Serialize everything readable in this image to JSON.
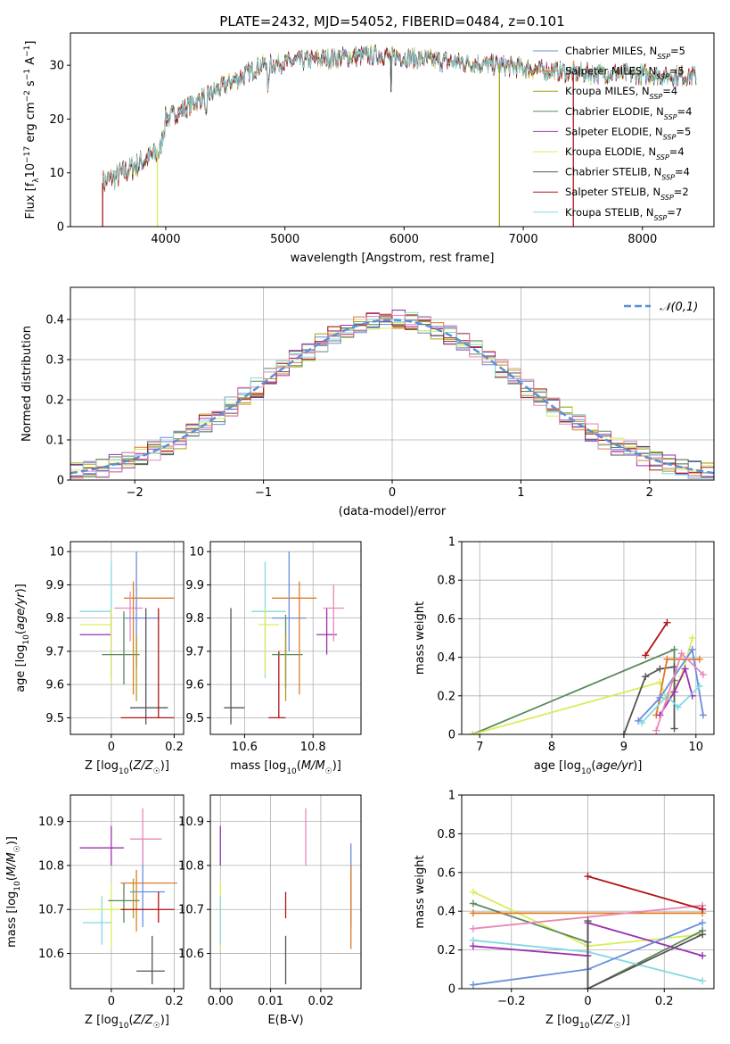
{
  "suptitle": "PLATE=2432, MJD=54052, FIBERID=0484, z=0.101",
  "colors": {
    "Chabrier MILES": "#6a8ddc",
    "Salpeter MILES": "#e07b25",
    "Kroupa MILES": "#a8a01a",
    "Chabrier ELODIE": "#5b8a5b",
    "Salpeter ELODIE": "#9b30b0",
    "Kroupa ELODIE": "#d8ee5a",
    "Chabrier STELIB": "#555555",
    "Salpeter STELIB": "#b01515",
    "Kroupa STELIB": "#84d8e0",
    "Salpeter STELIB alt": "#e888b8",
    "normal": "#5b8fd6"
  },
  "chart_data": [
    {
      "id": "spectrum",
      "type": "line",
      "xlabel": "wavelength [Angstrom, rest frame]",
      "ylabel": "Flux [f_λ10^-17 erg cm^-2 s^-1 A^-1]",
      "xlim": [
        3200,
        8600
      ],
      "ylim": [
        0,
        36
      ],
      "xticks": [
        4000,
        5000,
        6000,
        7000,
        8000
      ],
      "yticks": [
        0,
        10,
        20,
        30
      ],
      "grid": false,
      "legend_position": "top-right",
      "continuum": {
        "x": [
          3460,
          3600,
          3800,
          3950,
          4000,
          4200,
          4400,
          4600,
          4800,
          5000,
          5200,
          5500,
          5800,
          6000,
          6200,
          6500,
          6800,
          7000,
          7200,
          7500,
          7800,
          8000,
          8200,
          8400
        ],
        "y": [
          8,
          9.5,
          12,
          14,
          20,
          22.5,
          25,
          27.5,
          30,
          30.5,
          31,
          31.5,
          32,
          31.5,
          31,
          30.5,
          30,
          29.5,
          29,
          28.5,
          28.5,
          28.3,
          28.1,
          28
        ]
      },
      "series": [
        {
          "name": "Chabrier MILES",
          "nssp": "5"
        },
        {
          "name": "Salpeter MILES",
          "nssp": "5"
        },
        {
          "name": "Kroupa MILES",
          "nssp": "4"
        },
        {
          "name": "Chabrier ELODIE",
          "nssp": "4"
        },
        {
          "name": "Salpeter ELODIE",
          "nssp": "5"
        },
        {
          "name": "Kroupa ELODIE",
          "nssp": "4"
        },
        {
          "name": "Chabrier STELIB",
          "nssp": "4"
        },
        {
          "name": "Salpeter STELIB",
          "nssp": "2"
        },
        {
          "name": "Kroupa STELIB",
          "nssp": "7"
        }
      ],
      "drops": [
        {
          "x": 3930,
          "y": 0,
          "series": "Kroupa ELODIE"
        },
        {
          "x": 3470,
          "y": 0,
          "series": "Salpeter STELIB"
        },
        {
          "x": 6800,
          "y": 0,
          "series": "Kroupa MILES"
        },
        {
          "x": 7420,
          "y": 0,
          "series": "Salpeter STELIB"
        },
        {
          "x": 5890,
          "y": 25,
          "series": "Chabrier STELIB"
        }
      ]
    },
    {
      "id": "residual-histogram",
      "type": "line",
      "xlabel": "(data-model)/error",
      "ylabel": "Normed distribution",
      "xlim": [
        -2.5,
        2.5
      ],
      "ylim": [
        0,
        0.48
      ],
      "xticks": [
        -2,
        -1,
        0,
        1,
        2
      ],
      "yticks": [
        0.0,
        0.1,
        0.2,
        0.3,
        0.4
      ],
      "grid": true,
      "legend_position": "top-right",
      "normal_label": "𝒩(0,1)",
      "bin_width": 0.1,
      "series_colors": [
        "#6a8ddc",
        "#e07b25",
        "#a8a01a",
        "#5b8a5b",
        "#9b30b0",
        "#d8ee5a",
        "#555555",
        "#b01515",
        "#84d8e0",
        "#e888b8"
      ]
    },
    {
      "id": "age-vs-Z",
      "type": "scatter",
      "xlabel": "Z [log10(Z/Z☉)]",
      "ylabel": "age  [log10(age/yr)]",
      "xlim": [
        -0.13,
        0.23
      ],
      "ylim": [
        9.45,
        10.03
      ],
      "xticks": [
        0.0,
        0.2
      ],
      "yticks": [
        9.5,
        9.6,
        9.7,
        9.8,
        9.9,
        10.0
      ],
      "grid": true,
      "points": [
        {
          "color": "#84d8e0",
          "x": 0.0,
          "y": 9.82,
          "xerr": [
            0.1,
            0.0
          ],
          "yerr": [
            0.22,
            0.15
          ]
        },
        {
          "color": "#9b30b0",
          "x": 0.0,
          "y": 9.75,
          "xerr": [
            0.1,
            0.0
          ],
          "yerr": [
            0.12,
            0.08
          ]
        },
        {
          "color": "#d8ee5a",
          "x": 0.0,
          "y": 9.78,
          "xerr": [
            0.1,
            0.0
          ],
          "yerr": [
            0.18,
            0.05
          ]
        },
        {
          "color": "#5b8a5b",
          "x": 0.04,
          "y": 9.69,
          "xerr": [
            0.07,
            0.05
          ],
          "yerr": [
            0.09,
            0.13
          ]
        },
        {
          "color": "#e07b25",
          "x": 0.07,
          "y": 9.86,
          "xerr": [
            0.03,
            0.13
          ],
          "yerr": [
            0.29,
            0.05
          ]
        },
        {
          "color": "#e888b8",
          "x": 0.06,
          "y": 9.83,
          "xerr": [
            0.05,
            0.04
          ],
          "yerr": [
            0.1,
            0.05
          ]
        },
        {
          "color": "#6a8ddc",
          "x": 0.08,
          "y": 9.8,
          "xerr": [
            0.04,
            0.07
          ],
          "yerr": [
            0.15,
            0.2
          ]
        },
        {
          "color": "#555555",
          "x": 0.11,
          "y": 9.53,
          "xerr": [
            0.05,
            0.07
          ],
          "yerr": [
            0.05,
            0.3
          ]
        },
        {
          "color": "#a8a01a",
          "x": 0.08,
          "y": 9.65,
          "xerr": [
            0.0,
            0.0
          ],
          "yerr": [
            0.1,
            0.1
          ]
        },
        {
          "color": "#b01515",
          "x": 0.15,
          "y": 9.5,
          "xerr": [
            0.12,
            0.05
          ],
          "yerr": [
            0.0,
            0.33
          ]
        }
      ]
    },
    {
      "id": "age-vs-mass",
      "type": "scatter",
      "xlabel": "mass [log10(M/M☉)]",
      "xlim": [
        10.5,
        10.94
      ],
      "ylim": [
        9.45,
        10.03
      ],
      "xticks": [
        10.6,
        10.8
      ],
      "yticks": [
        9.5,
        9.6,
        9.7,
        9.8,
        9.9,
        10.0
      ],
      "grid": true,
      "points": [
        {
          "color": "#555555",
          "x": 10.56,
          "y": 9.53,
          "xerr": [
            0.02,
            0.04
          ],
          "yerr": [
            0.05,
            0.3
          ]
        },
        {
          "color": "#b01515",
          "x": 10.7,
          "y": 9.5,
          "xerr": [
            0.03,
            0.02
          ],
          "yerr": [
            0.0,
            0.2
          ]
        },
        {
          "color": "#84d8e0",
          "x": 10.66,
          "y": 9.82,
          "xerr": [
            0.04,
            0.06
          ],
          "yerr": [
            0.2,
            0.15
          ]
        },
        {
          "color": "#d8ee5a",
          "x": 10.66,
          "y": 9.78,
          "xerr": [
            0.02,
            0.04
          ],
          "yerr": [
            0.15,
            0.05
          ]
        },
        {
          "color": "#5b8a5b",
          "x": 10.72,
          "y": 9.69,
          "xerr": [
            0.04,
            0.05
          ],
          "yerr": [
            0.1,
            0.12
          ]
        },
        {
          "color": "#6a8ddc",
          "x": 10.73,
          "y": 9.8,
          "xerr": [
            0.05,
            0.05
          ],
          "yerr": [
            0.1,
            0.2
          ]
        },
        {
          "color": "#e07b25",
          "x": 10.76,
          "y": 9.86,
          "xerr": [
            0.08,
            0.05
          ],
          "yerr": [
            0.29,
            0.05
          ]
        },
        {
          "color": "#a8a01a",
          "x": 10.72,
          "y": 9.65,
          "xerr": [
            0.0,
            0.0
          ],
          "yerr": [
            0.1,
            0.1
          ]
        },
        {
          "color": "#9b30b0",
          "x": 10.84,
          "y": 9.75,
          "xerr": [
            0.03,
            0.03
          ],
          "yerr": [
            0.06,
            0.08
          ]
        },
        {
          "color": "#e888b8",
          "x": 10.86,
          "y": 9.83,
          "xerr": [
            0.03,
            0.03
          ],
          "yerr": [
            0.1,
            0.07
          ]
        }
      ]
    },
    {
      "id": "mass-weight-vs-age",
      "type": "line",
      "xlabel": "age  [log10(age/yr)]",
      "ylabel": "mass weight",
      "xlim": [
        6.75,
        10.25
      ],
      "ylim": [
        0,
        1.0
      ],
      "xticks": [
        7,
        8,
        9,
        10
      ],
      "yticks": [
        0.0,
        0.2,
        0.4,
        0.6,
        0.8,
        1.0
      ],
      "grid": true,
      "series": [
        {
          "color": "#5b8a5b",
          "x": [
            6.9,
            9.7,
            9.7
          ],
          "y": [
            0.0,
            0.44,
            0.28
          ]
        },
        {
          "color": "#d8ee5a",
          "x": [
            6.9,
            9.5,
            9.6,
            9.8,
            9.95
          ],
          "y": [
            0.0,
            0.27,
            0.18,
            0.3,
            0.5
          ]
        },
        {
          "color": "#b01515",
          "x": [
            9.3,
            9.6
          ],
          "y": [
            0.41,
            0.58
          ]
        },
        {
          "color": "#555555",
          "x": [
            9.0,
            9.3,
            9.5,
            9.7,
            9.7
          ],
          "y": [
            0.0,
            0.3,
            0.34,
            0.35,
            0.03
          ]
        },
        {
          "color": "#e07b25",
          "x": [
            9.45,
            9.6,
            10.05
          ],
          "y": [
            0.1,
            0.39,
            0.39
          ]
        },
        {
          "color": "#6a8ddc",
          "x": [
            9.2,
            9.5,
            9.95,
            10.1
          ],
          "y": [
            0.07,
            0.19,
            0.44,
            0.1
          ]
        },
        {
          "color": "#9b30b0",
          "x": [
            9.5,
            9.7,
            9.85,
            9.95
          ],
          "y": [
            0.1,
            0.22,
            0.34,
            0.2
          ]
        },
        {
          "color": "#84d8e0",
          "x": [
            9.25,
            9.6,
            9.75,
            10.05
          ],
          "y": [
            0.06,
            0.2,
            0.14,
            0.25
          ]
        },
        {
          "color": "#e888b8",
          "x": [
            9.45,
            9.8,
            10.1
          ],
          "y": [
            0.02,
            0.42,
            0.31
          ]
        }
      ]
    },
    {
      "id": "mass-vs-Z",
      "type": "scatter",
      "xlabel": "Z [log10(Z/Z☉)]",
      "ylabel": "mass [log10(M/M☉)]",
      "xlim": [
        -0.13,
        0.23
      ],
      "ylim": [
        10.52,
        10.96
      ],
      "xticks": [
        0.0,
        0.2
      ],
      "yticks": [
        10.6,
        10.7,
        10.8,
        10.9
      ],
      "grid": true,
      "points": [
        {
          "color": "#9b30b0",
          "x": 0.0,
          "y": 10.84,
          "xerr": [
            0.1,
            0.04
          ],
          "yerr": [
            0.04,
            0.05
          ]
        },
        {
          "color": "#84d8e0",
          "x": -0.03,
          "y": 10.67,
          "xerr": [
            0.06,
            0.03
          ],
          "yerr": [
            0.05,
            0.06
          ]
        },
        {
          "color": "#d8ee5a",
          "x": 0.0,
          "y": 10.7,
          "xerr": [
            0.08,
            0.06
          ],
          "yerr": [
            0.09,
            0.06
          ]
        },
        {
          "color": "#5b8a5b",
          "x": 0.04,
          "y": 10.72,
          "xerr": [
            0.05,
            0.05
          ],
          "yerr": [
            0.05,
            0.04
          ]
        },
        {
          "color": "#e07b25",
          "x": 0.08,
          "y": 10.76,
          "xerr": [
            0.05,
            0.13
          ],
          "yerr": [
            0.11,
            0.03
          ]
        },
        {
          "color": "#6a8ddc",
          "x": 0.1,
          "y": 10.74,
          "xerr": [
            0.04,
            0.07
          ],
          "yerr": [
            0.08,
            0.12
          ]
        },
        {
          "color": "#e888b8",
          "x": 0.1,
          "y": 10.86,
          "xerr": [
            0.04,
            0.06
          ],
          "yerr": [
            0.06,
            0.07
          ]
        },
        {
          "color": "#a8a01a",
          "x": 0.07,
          "y": 10.72,
          "xerr": [
            0.0,
            0.0
          ],
          "yerr": [
            0.04,
            0.05
          ]
        },
        {
          "color": "#b01515",
          "x": 0.15,
          "y": 10.7,
          "xerr": [
            0.12,
            0.05
          ],
          "yerr": [
            0.03,
            0.04
          ]
        },
        {
          "color": "#555555",
          "x": 0.13,
          "y": 10.56,
          "xerr": [
            0.05,
            0.04
          ],
          "yerr": [
            0.03,
            0.08
          ]
        }
      ]
    },
    {
      "id": "mass-vs-EBV",
      "type": "scatter",
      "xlabel": "E(B-V)",
      "xlim": [
        -0.002,
        0.028
      ],
      "ylim": [
        10.52,
        10.96
      ],
      "xticks": [
        0.0,
        0.01,
        0.02
      ],
      "xtick_labels": [
        "0.00",
        "0.01",
        "0.02"
      ],
      "yticks": [
        10.6,
        10.7,
        10.8,
        10.9
      ],
      "grid": true,
      "points": [
        {
          "color": "#9b30b0",
          "x": 0.0,
          "y": 10.84,
          "xerr": [
            0,
            0
          ],
          "yerr": [
            0.04,
            0.05
          ]
        },
        {
          "color": "#d8ee5a",
          "x": 0.0,
          "y": 10.7,
          "xerr": [
            0,
            0
          ],
          "yerr": [
            0.09,
            0.06
          ]
        },
        {
          "color": "#84d8e0",
          "x": 0.0,
          "y": 10.67,
          "xerr": [
            0,
            0
          ],
          "yerr": [
            0.05,
            0.06
          ]
        },
        {
          "color": "#b01515",
          "x": 0.013,
          "y": 10.7,
          "xerr": [
            0,
            0
          ],
          "yerr": [
            0.02,
            0.04
          ]
        },
        {
          "color": "#555555",
          "x": 0.013,
          "y": 10.58,
          "xerr": [
            0,
            0
          ],
          "yerr": [
            0.05,
            0.06
          ]
        },
        {
          "color": "#e888b8",
          "x": 0.017,
          "y": 10.86,
          "xerr": [
            0,
            0
          ],
          "yerr": [
            0.06,
            0.07
          ]
        },
        {
          "color": "#6a8ddc",
          "x": 0.026,
          "y": 10.74,
          "xerr": [
            0,
            0
          ],
          "yerr": [
            0.08,
            0.11
          ]
        },
        {
          "color": "#e07b25",
          "x": 0.026,
          "y": 10.72,
          "xerr": [
            0,
            0
          ],
          "yerr": [
            0.11,
            0.08
          ]
        }
      ]
    },
    {
      "id": "mass-weight-vs-Z",
      "type": "line",
      "xlabel": "Z [log10(Z/Z☉)]",
      "ylabel": "mass weight",
      "xlim": [
        -0.33,
        0.33
      ],
      "ylim": [
        0,
        1.0
      ],
      "xticks": [
        -0.2,
        0.0,
        0.2
      ],
      "yticks": [
        0.0,
        0.2,
        0.4,
        0.6,
        0.8,
        1.0
      ],
      "grid": true,
      "series": [
        {
          "color": "#d8ee5a",
          "x": [
            -0.3,
            0.0,
            0.3
          ],
          "y": [
            0.5,
            0.22,
            0.28
          ]
        },
        {
          "color": "#5b8a5b",
          "x": [
            -0.3,
            0.0,
            0.0,
            0.3
          ],
          "y": [
            0.44,
            0.24,
            0.0,
            0.3
          ]
        },
        {
          "color": "#e07b25",
          "x": [
            -0.3,
            0.3
          ],
          "y": [
            0.39,
            0.39
          ]
        },
        {
          "color": "#e888b8",
          "x": [
            -0.3,
            0.3
          ],
          "y": [
            0.31,
            0.43
          ]
        },
        {
          "color": "#84d8e0",
          "x": [
            -0.3,
            0.0,
            0.3
          ],
          "y": [
            0.25,
            0.19,
            0.04
          ]
        },
        {
          "color": "#9b30b0",
          "x": [
            -0.3,
            0.0,
            0.0,
            0.3
          ],
          "y": [
            0.22,
            0.17,
            0.34,
            0.17
          ]
        },
        {
          "color": "#6a8ddc",
          "x": [
            -0.3,
            0.0,
            0.3
          ],
          "y": [
            0.02,
            0.1,
            0.34
          ]
        },
        {
          "color": "#b01515",
          "x": [
            0.0,
            0.3
          ],
          "y": [
            0.58,
            0.41
          ]
        },
        {
          "color": "#555555",
          "x": [
            0.0,
            0.0,
            0.3
          ],
          "y": [
            0.35,
            0.0,
            0.28
          ]
        }
      ]
    }
  ]
}
